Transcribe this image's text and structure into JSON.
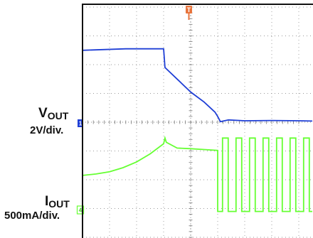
{
  "chart_data": {
    "type": "line",
    "title": "",
    "xlabel": "",
    "ylabel": "",
    "grid": true,
    "trigger_marker": "T",
    "channels": [
      {
        "id": "1",
        "name_main": "V",
        "name_sub": "OUT",
        "scale": "2V/div.",
        "color": "#1f3fd6",
        "marker_color": "#1f3fd6",
        "points": [
          [
            0,
            2.5
          ],
          [
            1.6,
            2.55
          ],
          [
            3.0,
            2.55
          ],
          [
            3.05,
            1.9
          ],
          [
            3.5,
            1.5
          ],
          [
            4.0,
            1.05
          ],
          [
            4.5,
            0.7
          ],
          [
            4.9,
            0.35
          ],
          [
            5.0,
            0.2
          ],
          [
            5.1,
            0.02
          ],
          [
            5.4,
            0.08
          ],
          [
            6.0,
            0.05
          ],
          [
            7.0,
            0.06
          ],
          [
            8.0,
            0.05
          ],
          [
            8.5,
            0.04
          ]
        ]
      },
      {
        "id": "4",
        "name_main": "I",
        "name_sub": "OUT",
        "scale": "500mA/div.",
        "color": "#66ff33",
        "marker_color": "#66ff33",
        "points": [
          [
            0,
            -1.85
          ],
          [
            0.5,
            -1.8
          ],
          [
            1.0,
            -1.72
          ],
          [
            1.5,
            -1.58
          ],
          [
            2.0,
            -1.38
          ],
          [
            2.5,
            -1.1
          ],
          [
            3.0,
            -0.75
          ],
          [
            3.05,
            -0.55
          ],
          [
            3.1,
            -0.7
          ],
          [
            3.5,
            -0.9
          ],
          [
            4.0,
            -0.92
          ],
          [
            4.5,
            -0.95
          ],
          [
            5.0,
            -0.98
          ]
        ],
        "pulse": {
          "x_start": 5.0,
          "x_end": 8.5,
          "high": -0.55,
          "low": -3.1,
          "period": 0.5,
          "duty": 0.42,
          "phase": 0.18
        }
      }
    ],
    "ranges": {
      "x": [
        0,
        8.5
      ],
      "y": [
        -3.9,
        4.1
      ]
    }
  }
}
